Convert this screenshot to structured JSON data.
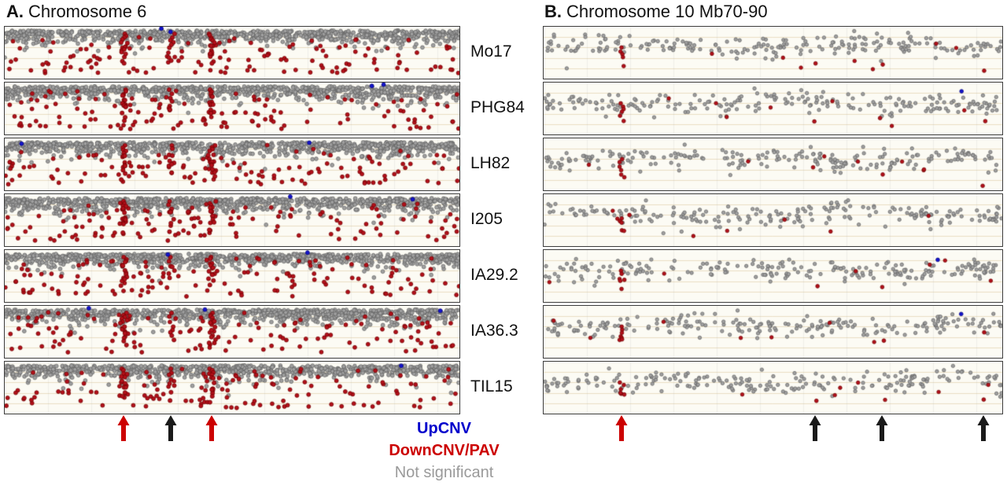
{
  "figure": {
    "panels": [
      {
        "id": "A",
        "title_prefix": "A.",
        "title": "Chromosome 6"
      },
      {
        "id": "B",
        "title_prefix": "B.",
        "title": "Chromosome 10 Mb70-90"
      }
    ],
    "row_labels": [
      "Mo17",
      "PHG84",
      "LH82",
      "I205",
      "IA29.2",
      "IA36.3",
      "TIL15"
    ]
  },
  "legend": {
    "items": [
      {
        "label": "UpCNV",
        "color": "#0000cc",
        "bold": true
      },
      {
        "label": "DownCNV/PAV",
        "color": "#cc0000",
        "bold": true
      },
      {
        "label": "Not significant",
        "color": "#9a9a9a",
        "bold": false
      }
    ]
  },
  "chart_data": [
    {
      "type": "scatter",
      "panel": "A",
      "title": "Chromosome 6",
      "rows": [
        "Mo17",
        "PHG84",
        "LH82",
        "I205",
        "IA29.2",
        "IA36.3",
        "TIL15"
      ],
      "point_classes": [
        {
          "name": "UpCNV",
          "color": "#1414cc"
        },
        {
          "name": "DownCNV/PAV",
          "color": "#b2101a"
        },
        {
          "name": "Not significant",
          "color": "#9a9a9a"
        }
      ],
      "description": "Dense band of non-significant gray probes along top of each genotype track; DownCNV/PAV red probes scattered below the band; a few blue UpCNV probes at the top edge.",
      "points_per_row_approx": {
        "gray": 850,
        "red": 130,
        "blue": 3
      },
      "features": [
        {
          "x_frac": 0.262,
          "kind": "red-streak",
          "strength": 1.0
        },
        {
          "x_frac": 0.366,
          "kind": "red-streak",
          "strength": 0.45
        },
        {
          "x_frac": 0.455,
          "kind": "red-streak",
          "strength": 1.0
        }
      ],
      "arrows": [
        {
          "x_frac": 0.262,
          "color": "#cc0000"
        },
        {
          "x_frac": 0.366,
          "color": "#1a1a1a"
        },
        {
          "x_frac": 0.455,
          "color": "#cc0000"
        }
      ]
    },
    {
      "type": "scatter",
      "panel": "B",
      "title": "Chromosome 10 Mb70-90",
      "rows": [
        "Mo17",
        "PHG84",
        "LH82",
        "I205",
        "IA29.2",
        "IA36.3",
        "TIL15"
      ],
      "point_classes": [
        {
          "name": "UpCNV",
          "color": "#1414cc"
        },
        {
          "name": "DownCNV/PAV",
          "color": "#b2101a"
        },
        {
          "name": "Not significant",
          "color": "#9a9a9a"
        }
      ],
      "description": "Sparser tracks; loose gray band in upper half; red PAV streak near left (Mb ~73) and isolated low red probes at the black-arrow positions.",
      "points_per_row_approx": {
        "gray": 210,
        "red": 7,
        "blue": 1
      },
      "features": [
        {
          "x_frac": 0.171,
          "kind": "red-streak",
          "strength": 1.0
        },
        {
          "x_frac": 0.592,
          "kind": "low-red-dot",
          "strength": 0.8
        },
        {
          "x_frac": 0.737,
          "kind": "low-red-dot",
          "strength": 0.8
        },
        {
          "x_frac": 0.958,
          "kind": "low-red-dot",
          "strength": 0.8
        }
      ],
      "arrows": [
        {
          "x_frac": 0.171,
          "color": "#cc0000"
        },
        {
          "x_frac": 0.592,
          "color": "#1a1a1a"
        },
        {
          "x_frac": 0.737,
          "color": "#1a1a1a"
        },
        {
          "x_frac": 0.958,
          "color": "#1a1a1a"
        }
      ]
    }
  ],
  "render": {
    "seed": 42
  }
}
